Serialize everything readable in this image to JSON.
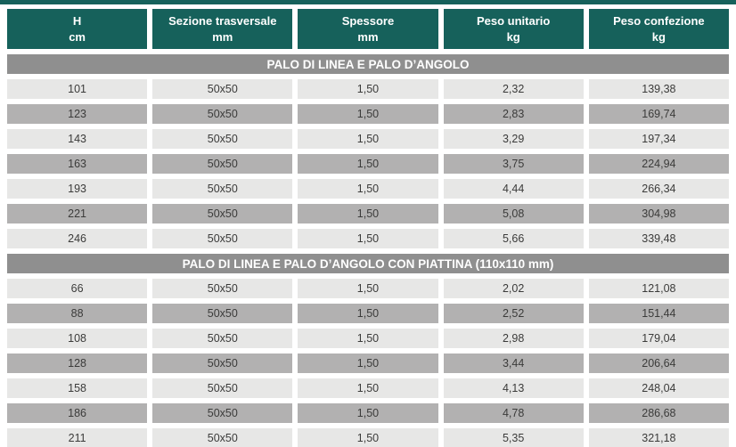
{
  "colors": {
    "header_bg": "#16615b",
    "header_text": "#ffffff",
    "section_bg": "#8f8f8f",
    "section_text": "#ffffff",
    "row_light": "#e7e7e6",
    "row_dark": "#b2b1b1",
    "cell_text": "#3b3b3a"
  },
  "table": {
    "columns": [
      {
        "label": "H",
        "unit": "cm"
      },
      {
        "label": "Sezione trasversale",
        "unit": "mm"
      },
      {
        "label": "Spessore",
        "unit": "mm"
      },
      {
        "label": "Peso unitario",
        "unit": "kg"
      },
      {
        "label": "Peso confezione",
        "unit": "kg"
      }
    ],
    "sections": [
      {
        "title": "PALO DI LINEA E PALO D’ANGOLO",
        "rows": [
          [
            "101",
            "50x50",
            "1,50",
            "2,32",
            "139,38"
          ],
          [
            "123",
            "50x50",
            "1,50",
            "2,83",
            "169,74"
          ],
          [
            "143",
            "50x50",
            "1,50",
            "3,29",
            "197,34"
          ],
          [
            "163",
            "50x50",
            "1,50",
            "3,75",
            "224,94"
          ],
          [
            "193",
            "50x50",
            "1,50",
            "4,44",
            "266,34"
          ],
          [
            "221",
            "50x50",
            "1,50",
            "5,08",
            "304,98"
          ],
          [
            "246",
            "50x50",
            "1,50",
            "5,66",
            "339,48"
          ]
        ]
      },
      {
        "title": "PALO DI LINEA E PALO D’ANGOLO CON PIATTINA (110x110 mm)",
        "rows": [
          [
            "66",
            "50x50",
            "1,50",
            "2,02",
            "121,08"
          ],
          [
            "88",
            "50x50",
            "1,50",
            "2,52",
            "151,44"
          ],
          [
            "108",
            "50x50",
            "1,50",
            "2,98",
            "179,04"
          ],
          [
            "128",
            "50x50",
            "1,50",
            "3,44",
            "206,64"
          ],
          [
            "158",
            "50x50",
            "1,50",
            "4,13",
            "248,04"
          ],
          [
            "186",
            "50x50",
            "1,50",
            "4,78",
            "286,68"
          ],
          [
            "211",
            "50x50",
            "1,50",
            "5,35",
            "321,18"
          ]
        ]
      }
    ]
  }
}
